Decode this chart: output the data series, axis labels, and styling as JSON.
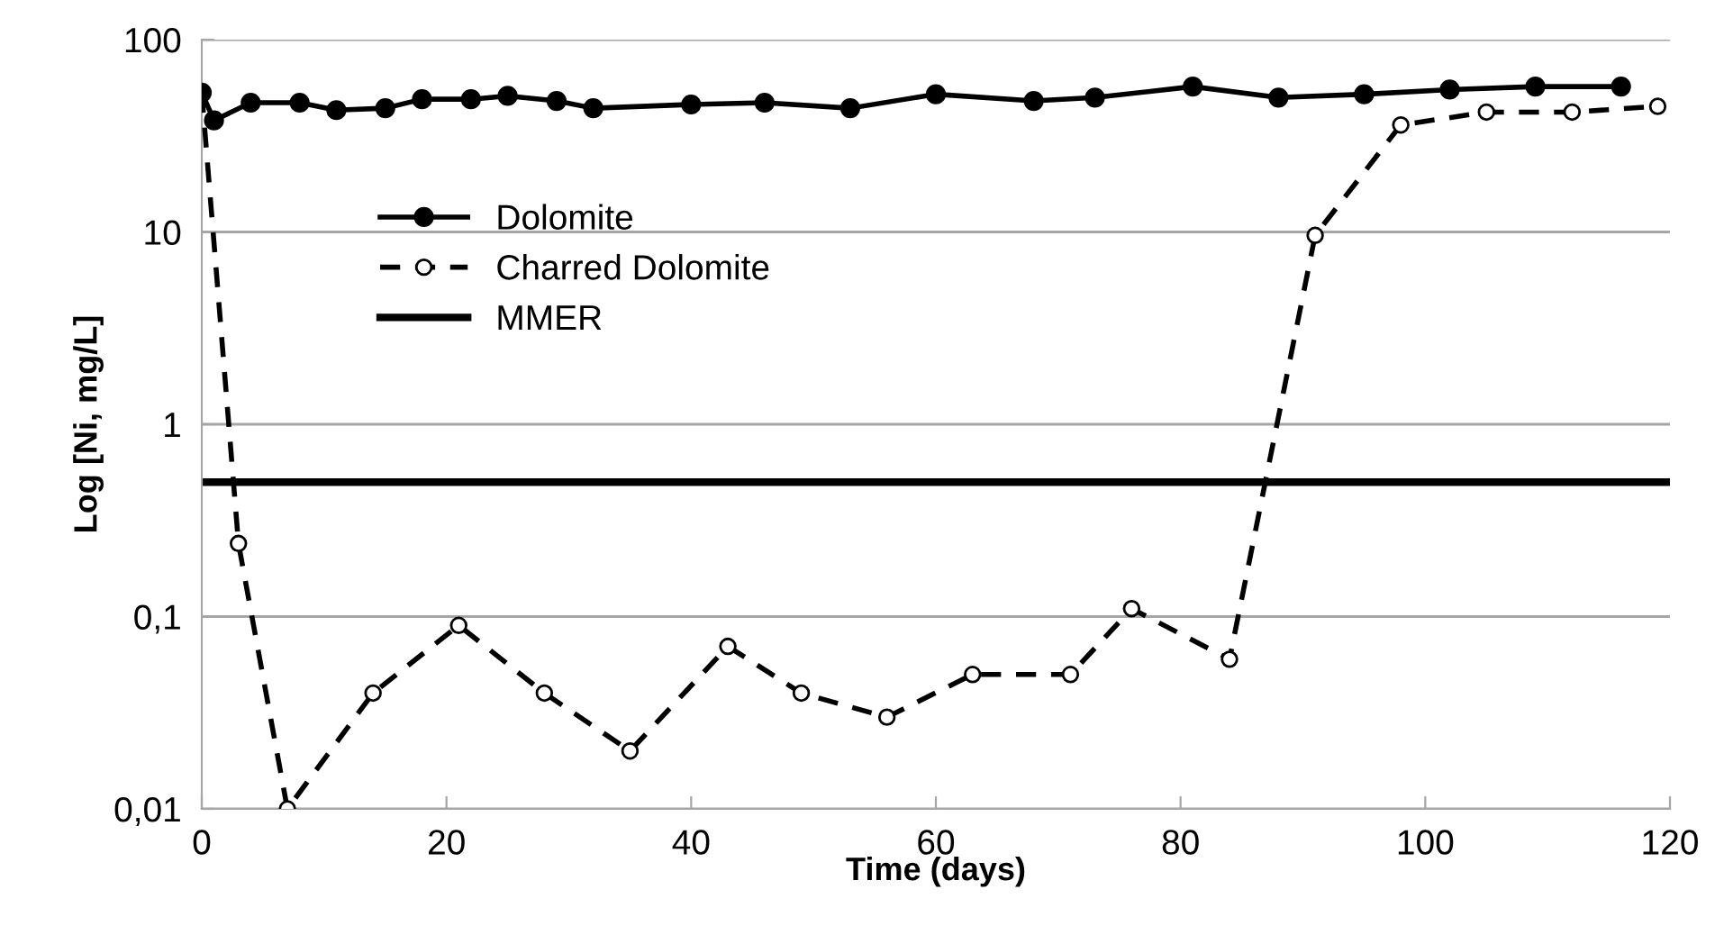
{
  "chart_data": {
    "type": "line",
    "xlabel": "Time (days)",
    "ylabel": "Log [Ni, mg/L]",
    "series": [
      {
        "name": "Dolomite",
        "color": "#000000",
        "marker": "circle",
        "line_style": "solid",
        "x": [
          0,
          1,
          4,
          8,
          11,
          15,
          18,
          22,
          25,
          29,
          32,
          40,
          46,
          53,
          60,
          68,
          73,
          81,
          88,
          95,
          102,
          109,
          116
        ],
        "values": [
          53,
          38,
          47,
          47,
          43,
          44,
          49,
          49,
          51,
          48,
          44,
          46,
          47,
          44,
          52,
          48,
          50,
          57,
          50,
          52,
          55,
          57,
          57
        ]
      },
      {
        "name": "Charred Dolomite",
        "color": "#000000",
        "marker": "circle",
        "line_style": "dashed",
        "x": [
          0,
          3,
          7,
          14,
          21,
          28,
          35,
          43,
          49,
          56,
          63,
          71,
          76,
          84,
          91,
          98,
          105,
          112,
          119
        ],
        "values": [
          53,
          0.24,
          0.01,
          0.04,
          0.09,
          0.04,
          0.02,
          0.07,
          0.04,
          0.03,
          0.05,
          0.05,
          0.11,
          0.06,
          9.6,
          36,
          42,
          42,
          45
        ]
      }
    ],
    "ref_lines": [
      {
        "axis": "y",
        "value": 0.5,
        "label": "MMER",
        "color": "#000000",
        "line_style": "solid"
      }
    ],
    "log": "y",
    "xlim": [
      0,
      120
    ],
    "xticks": [
      0,
      20,
      40,
      60,
      80,
      100,
      120
    ],
    "ylim": [
      0.01,
      100
    ],
    "yticks": [
      {
        "value": 0.01,
        "label": "0,01"
      },
      {
        "value": 0.1,
        "label": "0,1"
      },
      1,
      10,
      100
    ],
    "grid": "y",
    "legend": "left"
  }
}
